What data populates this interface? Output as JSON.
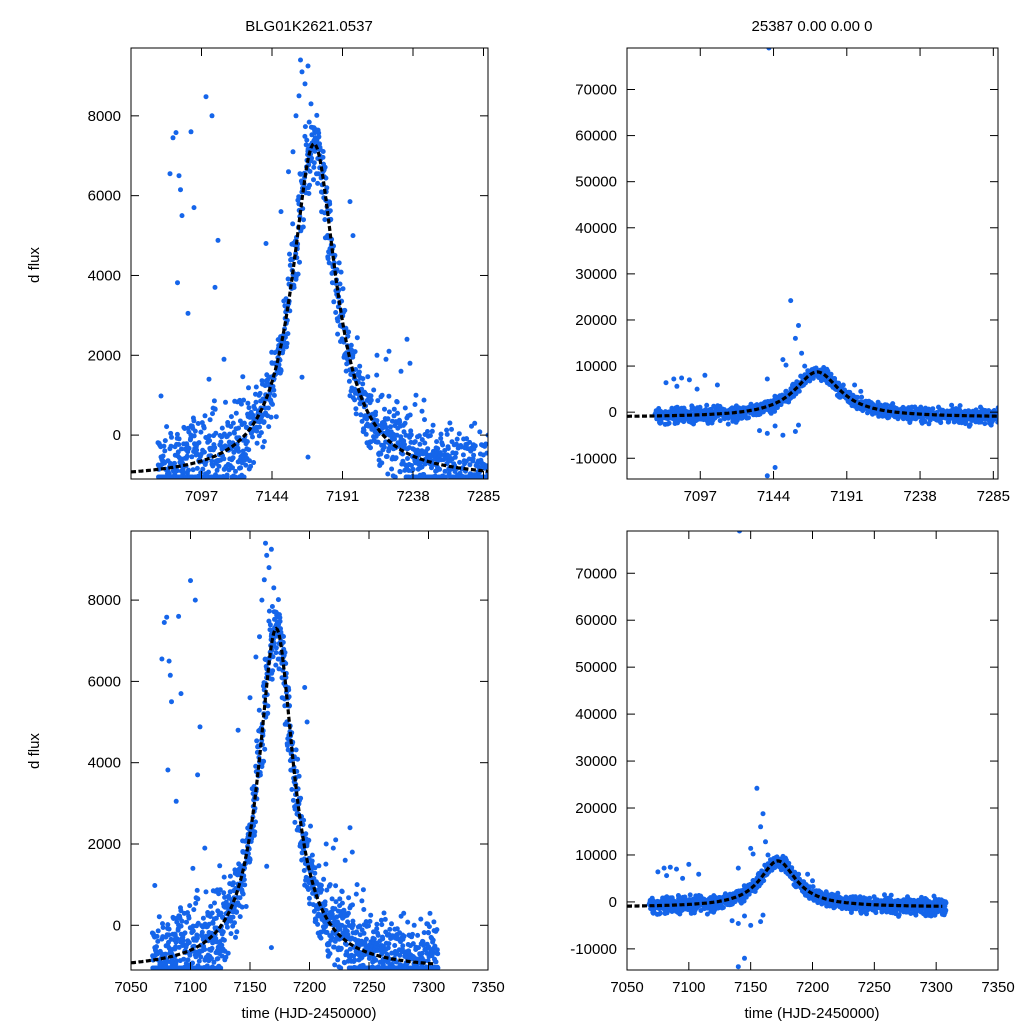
{
  "chart_data": {
    "type": "scatter",
    "header_left": "BLG01K2621.0537",
    "header_right": "25387  0.00  0.00  0",
    "y_label": "d flux",
    "x_label": "time (HJD-2450000)",
    "point_color": "#1565ea",
    "model_color": "#000000",
    "model": {
      "type": "lorentzian-like peak",
      "t0": 7172,
      "peak": 7300,
      "baseline": -1100,
      "width": 20
    },
    "panels": [
      {
        "id": "top-left",
        "xlim": [
          7050,
          7288
        ],
        "ylim": [
          -1100,
          9700
        ],
        "xticks": [
          7097,
          7144,
          7191,
          7238,
          7285
        ],
        "yticks": [
          0,
          2000,
          4000,
          6000,
          8000
        ],
        "xtick_labels": [
          "7097",
          "7144",
          "7191",
          "7238",
          "7285"
        ],
        "ytick_labels": [
          "0",
          "2000",
          "4000",
          "6000",
          "8000"
        ]
      },
      {
        "id": "top-right",
        "xlim": [
          7050,
          7288
        ],
        "ylim": [
          -14500,
          79000
        ],
        "xticks": [
          7097,
          7144,
          7191,
          7238,
          7285
        ],
        "yticks": [
          -10000,
          0,
          10000,
          20000,
          30000,
          40000,
          50000,
          60000,
          70000
        ],
        "xtick_labels": [
          "7097",
          "7144",
          "7191",
          "7238",
          "7285"
        ],
        "ytick_labels": [
          "-10000",
          "0",
          "10000",
          "20000",
          "30000",
          "40000",
          "50000",
          "60000",
          "70000"
        ]
      },
      {
        "id": "bottom-left",
        "xlim": [
          7050,
          7350
        ],
        "ylim": [
          -1100,
          9700
        ],
        "xticks": [
          7050,
          7100,
          7150,
          7200,
          7250,
          7300,
          7350
        ],
        "yticks": [
          0,
          2000,
          4000,
          6000,
          8000
        ],
        "xtick_labels": [
          "7050",
          "7100",
          "7150",
          "7200",
          "7250",
          "7300",
          "7350"
        ],
        "ytick_labels": [
          "0",
          "2000",
          "4000",
          "6000",
          "8000"
        ]
      },
      {
        "id": "bottom-right",
        "xlim": [
          7050,
          7350
        ],
        "ylim": [
          -14500,
          79000
        ],
        "xticks": [
          7050,
          7100,
          7150,
          7200,
          7250,
          7300,
          7350
        ],
        "yticks": [
          -10000,
          0,
          10000,
          20000,
          30000,
          40000,
          50000,
          60000,
          70000
        ],
        "xtick_labels": [
          "7050",
          "7100",
          "7150",
          "7200",
          "7250",
          "7300",
          "7350"
        ],
        "ytick_labels": [
          "-10000",
          "0",
          "10000",
          "20000",
          "30000",
          "40000",
          "50000",
          "60000",
          "70000"
        ]
      }
    ],
    "flux_points_left": [
      [
        7070,
        980
      ],
      [
        7076,
        6550
      ],
      [
        7078,
        7450
      ],
      [
        7080,
        7580
      ],
      [
        7081,
        3820
      ],
      [
        7082,
        6500
      ],
      [
        7083,
        6150
      ],
      [
        7084,
        5500
      ],
      [
        7088,
        3050
      ],
      [
        7090,
        7600
      ],
      [
        7092,
        5700
      ],
      [
        7100,
        8480
      ],
      [
        7104,
        8000
      ],
      [
        7106,
        3700
      ],
      [
        7108,
        4880
      ],
      [
        7102,
        1400
      ],
      [
        7112,
        1900
      ],
      [
        7140,
        4800
      ],
      [
        7150,
        5600
      ],
      [
        7155,
        6600
      ],
      [
        7158,
        7100
      ],
      [
        7160,
        8000
      ],
      [
        7162,
        8500
      ],
      [
        7163,
        9400
      ],
      [
        7164,
        9100
      ],
      [
        7166,
        8800
      ],
      [
        7168,
        9250
      ],
      [
        7170,
        8300
      ],
      [
        7172,
        7700
      ],
      [
        7174,
        7400
      ],
      [
        7176,
        7000
      ],
      [
        7178,
        6600
      ],
      [
        7180,
        6100
      ],
      [
        7182,
        5400
      ],
      [
        7184,
        4700
      ],
      [
        7186,
        4100
      ],
      [
        7188,
        3600
      ],
      [
        7164,
        1450
      ],
      [
        7168,
        -550
      ],
      [
        7196,
        5850
      ],
      [
        7198,
        5000
      ],
      [
        7214,
        2000
      ],
      [
        7220,
        1900
      ],
      [
        7222,
        2100
      ],
      [
        7230,
        1600
      ],
      [
        7234,
        2400
      ],
      [
        7236,
        1800
      ],
      [
        7240,
        1000
      ],
      [
        7244,
        600
      ],
      [
        7288,
        0
      ]
    ],
    "flux_points_right": [
      [
        7075,
        6400
      ],
      [
        7080,
        7200
      ],
      [
        7082,
        5600
      ],
      [
        7085,
        7400
      ],
      [
        7090,
        7000
      ],
      [
        7095,
        5000
      ],
      [
        7100,
        8000
      ],
      [
        7108,
        5900
      ],
      [
        7140,
        7200
      ],
      [
        7150,
        11400
      ],
      [
        7152,
        10200
      ],
      [
        7155,
        24200
      ],
      [
        7158,
        16000
      ],
      [
        7160,
        18800
      ],
      [
        7162,
        12800
      ],
      [
        7164,
        10000
      ],
      [
        7166,
        9000
      ],
      [
        7172,
        8000
      ],
      [
        7174,
        7400
      ],
      [
        7180,
        6000
      ],
      [
        7186,
        5000
      ],
      [
        7196,
        5900
      ],
      [
        7200,
        4500
      ],
      [
        7115,
        -2600
      ],
      [
        7120,
        -2200
      ],
      [
        7135,
        -4000
      ],
      [
        7140,
        -4600
      ],
      [
        7145,
        -3000
      ],
      [
        7150,
        -5000
      ],
      [
        7158,
        -4200
      ],
      [
        7160,
        -2800
      ],
      [
        7145,
        -12000
      ],
      [
        7140,
        -13800
      ],
      [
        7141,
        79000
      ]
    ],
    "dataset_ranges": {
      "dense_start": 7068,
      "dense_end": 7308
    }
  }
}
